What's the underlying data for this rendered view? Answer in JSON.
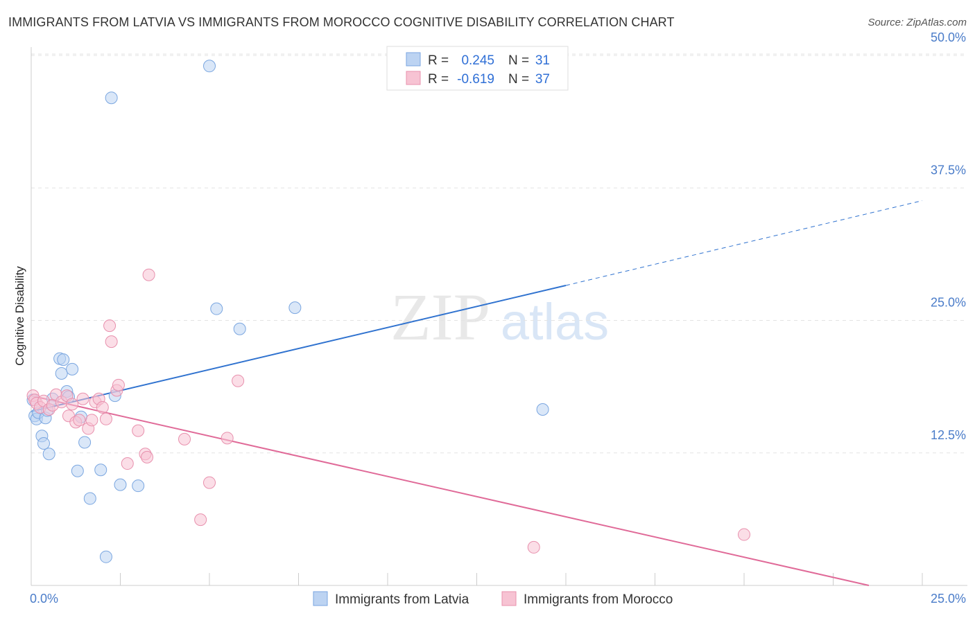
{
  "title": "IMMIGRANTS FROM LATVIA VS IMMIGRANTS FROM MOROCCO COGNITIVE DISABILITY CORRELATION CHART",
  "source": "Source: ZipAtlas.com",
  "watermark": {
    "zip": "ZIP",
    "atlas": "atlas"
  },
  "colors": {
    "latvia_fill": "#bcd3f2",
    "latvia_stroke": "#7aa6e0",
    "latvia_line": "#2f72cf",
    "morocco_fill": "#f7c3d3",
    "morocco_stroke": "#e890ad",
    "morocco_line": "#e06a98",
    "tick_text": "#4a7cc9",
    "grid": "#e3e3e3"
  },
  "stats": {
    "latvia": {
      "r_label": "R =",
      "r_value": "0.245",
      "n_label": "N =",
      "n_value": "31"
    },
    "morocco": {
      "r_label": "R =",
      "r_value": "-0.619",
      "n_label": "N =",
      "n_value": "37"
    }
  },
  "chart_data": {
    "type": "scatter",
    "title": "IMMIGRANTS FROM LATVIA VS IMMIGRANTS FROM MOROCCO COGNITIVE DISABILITY CORRELATION CHART",
    "xlabel": "",
    "ylabel": "Cognitive Disability",
    "xlim": [
      0,
      25
    ],
    "ylim": [
      0,
      50
    ],
    "x_tick_labels": [
      {
        "value": 0,
        "label": "0.0%"
      },
      {
        "value": 25,
        "label": "25.0%"
      }
    ],
    "y_tick_labels": [
      {
        "value": 12.5,
        "label": "12.5%"
      },
      {
        "value": 25,
        "label": "25.0%"
      },
      {
        "value": 37.5,
        "label": "37.5%"
      },
      {
        "value": 50,
        "label": "50.0%"
      }
    ],
    "x_minor_ticks": [
      2.5,
      5,
      7.5,
      10,
      12.5,
      15,
      17.5,
      20,
      22.5,
      25
    ],
    "legend_position": "top-center",
    "series": [
      {
        "name": "Immigrants from Latvia",
        "points": [
          [
            0.1,
            16.0
          ],
          [
            0.15,
            15.7
          ],
          [
            0.2,
            16.3
          ],
          [
            0.3,
            14.1
          ],
          [
            0.35,
            13.4
          ],
          [
            0.4,
            15.8
          ],
          [
            0.45,
            16.5
          ],
          [
            0.5,
            12.4
          ],
          [
            0.6,
            17.6
          ],
          [
            0.8,
            21.4
          ],
          [
            0.85,
            20.0
          ],
          [
            0.9,
            21.3
          ],
          [
            1.0,
            18.3
          ],
          [
            1.05,
            17.8
          ],
          [
            1.15,
            20.4
          ],
          [
            1.3,
            10.8
          ],
          [
            1.4,
            15.9
          ],
          [
            1.5,
            13.5
          ],
          [
            1.65,
            8.2
          ],
          [
            1.95,
            10.9
          ],
          [
            2.1,
            2.7
          ],
          [
            2.25,
            46.0
          ],
          [
            2.35,
            17.9
          ],
          [
            2.5,
            9.5
          ],
          [
            3.0,
            9.4
          ],
          [
            5.0,
            49.0
          ],
          [
            5.2,
            26.1
          ],
          [
            5.85,
            24.2
          ],
          [
            7.4,
            26.2
          ],
          [
            14.35,
            16.6
          ],
          [
            0.05,
            17.5
          ]
        ],
        "trend": {
          "x0": 0,
          "y0": 16.4,
          "x1": 15,
          "y1": 28.3,
          "dash_to_x": 25,
          "dash_to_y": 36.3
        }
      },
      {
        "name": "Immigrants from Morocco",
        "points": [
          [
            0.05,
            17.9
          ],
          [
            0.1,
            17.5
          ],
          [
            0.15,
            17.2
          ],
          [
            0.25,
            16.8
          ],
          [
            0.35,
            17.4
          ],
          [
            0.5,
            16.6
          ],
          [
            0.6,
            17.0
          ],
          [
            0.7,
            18.0
          ],
          [
            0.85,
            17.3
          ],
          [
            1.0,
            17.9
          ],
          [
            1.05,
            16.0
          ],
          [
            1.15,
            17.1
          ],
          [
            1.25,
            15.4
          ],
          [
            1.35,
            15.6
          ],
          [
            1.45,
            17.6
          ],
          [
            1.6,
            14.8
          ],
          [
            1.7,
            15.6
          ],
          [
            1.8,
            17.3
          ],
          [
            1.9,
            17.6
          ],
          [
            2.0,
            16.8
          ],
          [
            2.1,
            15.7
          ],
          [
            2.2,
            24.5
          ],
          [
            2.25,
            23.0
          ],
          [
            2.4,
            18.4
          ],
          [
            2.45,
            18.9
          ],
          [
            2.7,
            11.5
          ],
          [
            3.0,
            14.6
          ],
          [
            3.2,
            12.4
          ],
          [
            3.25,
            12.1
          ],
          [
            3.3,
            29.3
          ],
          [
            4.3,
            13.8
          ],
          [
            4.75,
            6.2
          ],
          [
            5.0,
            9.7
          ],
          [
            5.5,
            13.9
          ],
          [
            5.8,
            19.3
          ],
          [
            14.1,
            3.6
          ],
          [
            20.0,
            4.8
          ]
        ],
        "trend": {
          "x0": 0,
          "y0": 17.9,
          "x1": 23.5,
          "y1": 0.0
        }
      }
    ]
  }
}
